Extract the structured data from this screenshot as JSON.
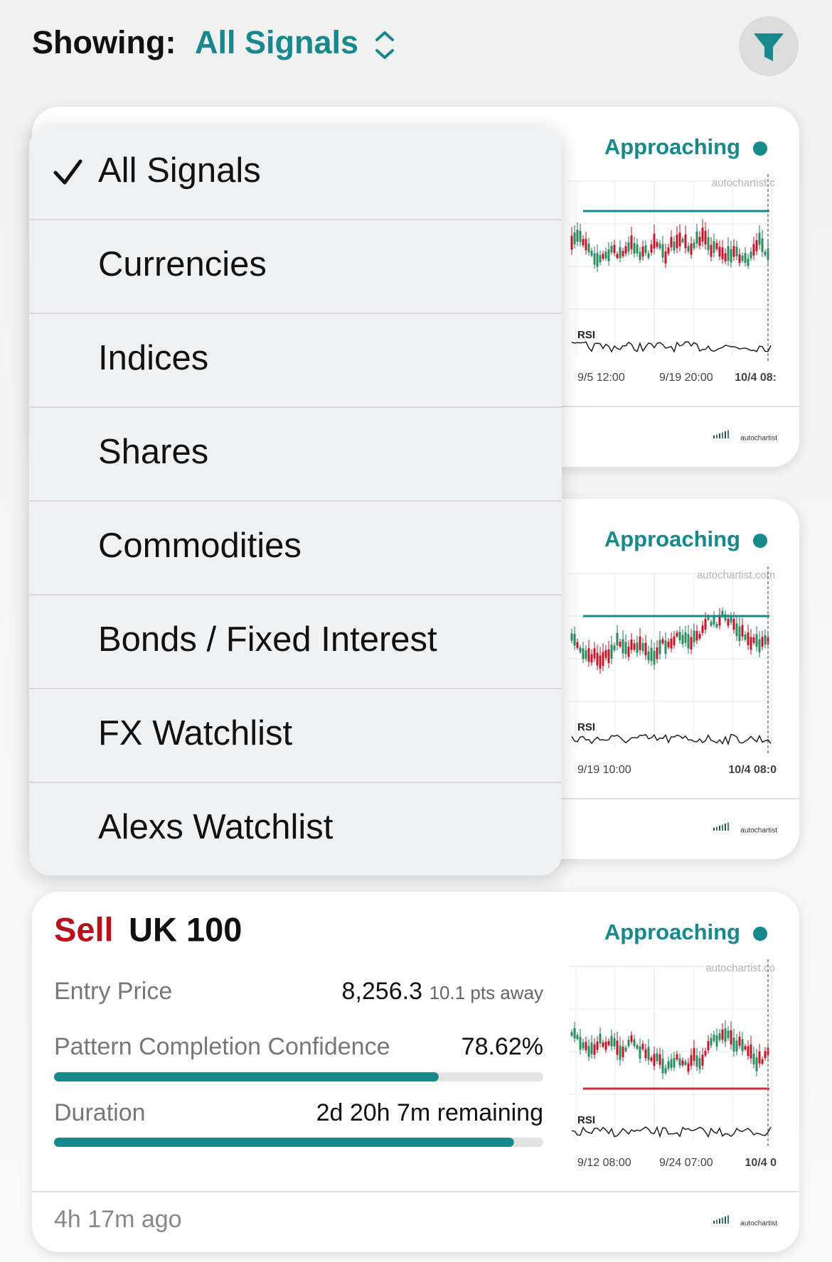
{
  "header": {
    "label": "Showing:",
    "selection": "All Signals"
  },
  "menu": {
    "items": [
      "All Signals",
      "Currencies",
      "Indices",
      "Shares",
      "Commodities",
      "Bonds / Fixed Interest",
      "FX Watchlist",
      "Alexs Watchlist"
    ],
    "selected": 0
  },
  "cards": [
    {
      "status": "Approaching",
      "chart": {
        "watermark": "autochartist.c",
        "rsi_label": "RSI",
        "x_labels": [
          "9/5 12:00",
          "9/19 20:00",
          "10/4 08:"
        ]
      },
      "logo": "autochartist"
    },
    {
      "status": "Approaching",
      "chart": {
        "watermark": "autochartist.com",
        "rsi_label": "RSI",
        "x_labels": [
          "9/19 10:00",
          "10/4 08:0"
        ]
      },
      "logo": "autochartist"
    },
    {
      "status": "Approaching",
      "chart": {
        "watermark": "autochartist.co",
        "rsi_label": "RSI",
        "x_labels": [
          "9/12 08:00",
          "9/24 07:00",
          "10/4 0"
        ]
      },
      "logo": "autochartist",
      "direction": "Sell",
      "instrument": "UK 100",
      "entry_price": {
        "label": "Entry Price",
        "value": "8,256.3",
        "distance": "10.1 pts away"
      },
      "confidence": {
        "label": "Pattern Completion Confidence",
        "value": 78.62,
        "value_label": "78.62%"
      },
      "duration": {
        "label": "Duration",
        "value_label": "2d 20h 7m remaining",
        "progress": 94
      },
      "age": "4h 17m ago"
    }
  ]
}
